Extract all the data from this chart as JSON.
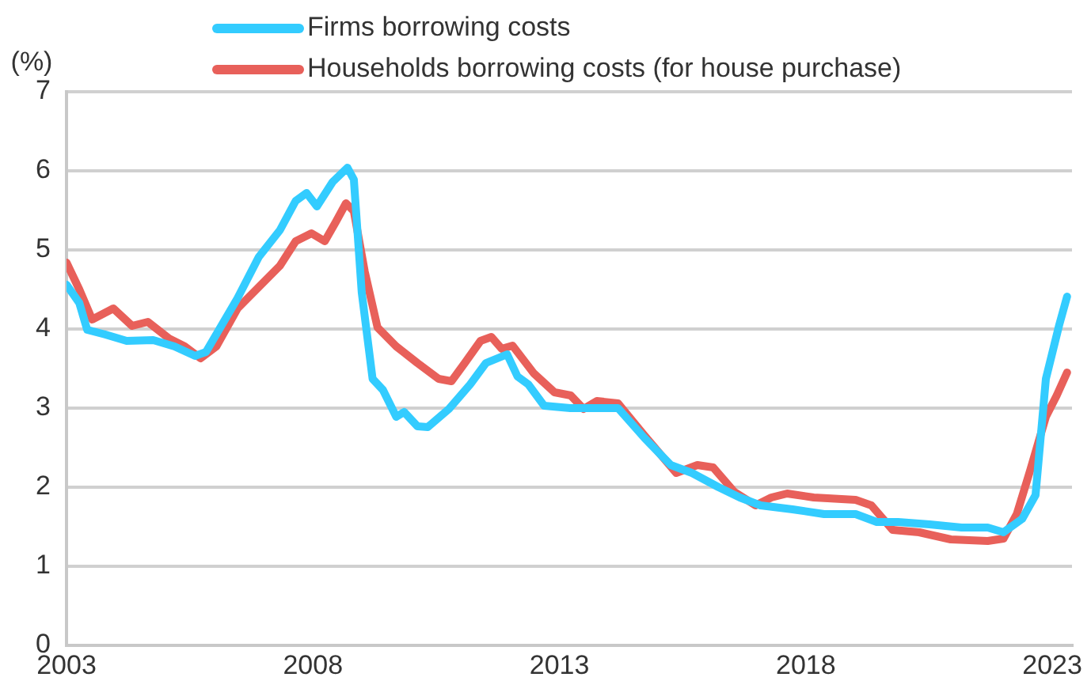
{
  "chart_data": {
    "type": "line",
    "ylabel": "(%)",
    "legend": "top",
    "grid": "y",
    "marker": "none",
    "line_style": "solid",
    "xlim": [
      2003,
      2023.4
    ],
    "xticks": [
      2003,
      2008,
      2013,
      2018,
      2023
    ],
    "ylim": [
      0,
      7
    ],
    "yticks": [
      0,
      1,
      2,
      3,
      4,
      5,
      6,
      7
    ],
    "series": [
      {
        "name": "Firms borrowing costs",
        "color": "#33ccff",
        "x": [
          2003.0,
          2003.26,
          2003.42,
          2003.79,
          2004.22,
          2004.76,
          2005.19,
          2005.61,
          2005.83,
          2006.15,
          2006.47,
          2006.9,
          2007.33,
          2007.65,
          2007.87,
          2008.08,
          2008.4,
          2008.7,
          2008.83,
          2008.99,
          2009.21,
          2009.42,
          2009.69,
          2009.85,
          2010.12,
          2010.33,
          2010.76,
          2011.19,
          2011.51,
          2011.94,
          2012.15,
          2012.37,
          2012.69,
          2013.22,
          2013.65,
          2014.19,
          2014.73,
          2015.26,
          2015.69,
          2016.23,
          2016.66,
          2017.08,
          2017.73,
          2018.37,
          2019.01,
          2019.44,
          2019.87,
          2020.51,
          2021.16,
          2021.69,
          2022.01,
          2022.39,
          2022.66,
          2022.87,
          2023.14,
          2023.3
        ],
        "values": [
          4.56,
          4.33,
          3.99,
          3.93,
          3.85,
          3.86,
          3.78,
          3.66,
          3.71,
          4.05,
          4.39,
          4.91,
          5.25,
          5.62,
          5.72,
          5.55,
          5.86,
          6.04,
          5.89,
          4.46,
          3.37,
          3.23,
          2.89,
          2.95,
          2.77,
          2.76,
          2.99,
          3.3,
          3.57,
          3.68,
          3.4,
          3.3,
          3.03,
          3.0,
          3.0,
          3.0,
          2.62,
          2.28,
          2.18,
          2.0,
          1.87,
          1.77,
          1.72,
          1.66,
          1.66,
          1.56,
          1.56,
          1.53,
          1.49,
          1.49,
          1.43,
          1.6,
          1.9,
          3.37,
          4.05,
          4.41
        ]
      },
      {
        "name": "Households borrowing costs (for house purchase)",
        "color": "#e8605a",
        "x": [
          2003.0,
          2003.26,
          2003.52,
          2003.95,
          2004.33,
          2004.65,
          2005.08,
          2005.4,
          2005.72,
          2006.04,
          2006.47,
          2006.9,
          2007.33,
          2007.65,
          2007.97,
          2008.24,
          2008.46,
          2008.67,
          2008.83,
          2009.05,
          2009.31,
          2009.69,
          2010.12,
          2010.55,
          2010.81,
          2011.08,
          2011.4,
          2011.62,
          2011.83,
          2012.05,
          2012.48,
          2012.9,
          2013.23,
          2013.49,
          2013.76,
          2014.19,
          2014.73,
          2015.37,
          2015.8,
          2016.12,
          2016.55,
          2016.98,
          2017.3,
          2017.62,
          2018.16,
          2019.01,
          2019.33,
          2019.76,
          2020.3,
          2020.94,
          2021.69,
          2022.01,
          2022.28,
          2022.55,
          2022.87,
          2023.09,
          2023.3
        ],
        "values": [
          4.84,
          4.5,
          4.12,
          4.26,
          4.04,
          4.09,
          3.88,
          3.78,
          3.63,
          3.78,
          4.26,
          4.53,
          4.8,
          5.11,
          5.21,
          5.11,
          5.35,
          5.59,
          5.49,
          4.73,
          4.02,
          3.78,
          3.57,
          3.37,
          3.34,
          3.57,
          3.85,
          3.9,
          3.75,
          3.79,
          3.44,
          3.2,
          3.16,
          2.99,
          3.09,
          3.06,
          2.65,
          2.18,
          2.28,
          2.25,
          1.94,
          1.77,
          1.87,
          1.92,
          1.87,
          1.84,
          1.77,
          1.46,
          1.43,
          1.34,
          1.32,
          1.35,
          1.66,
          2.21,
          2.89,
          3.16,
          3.45
        ]
      }
    ]
  }
}
